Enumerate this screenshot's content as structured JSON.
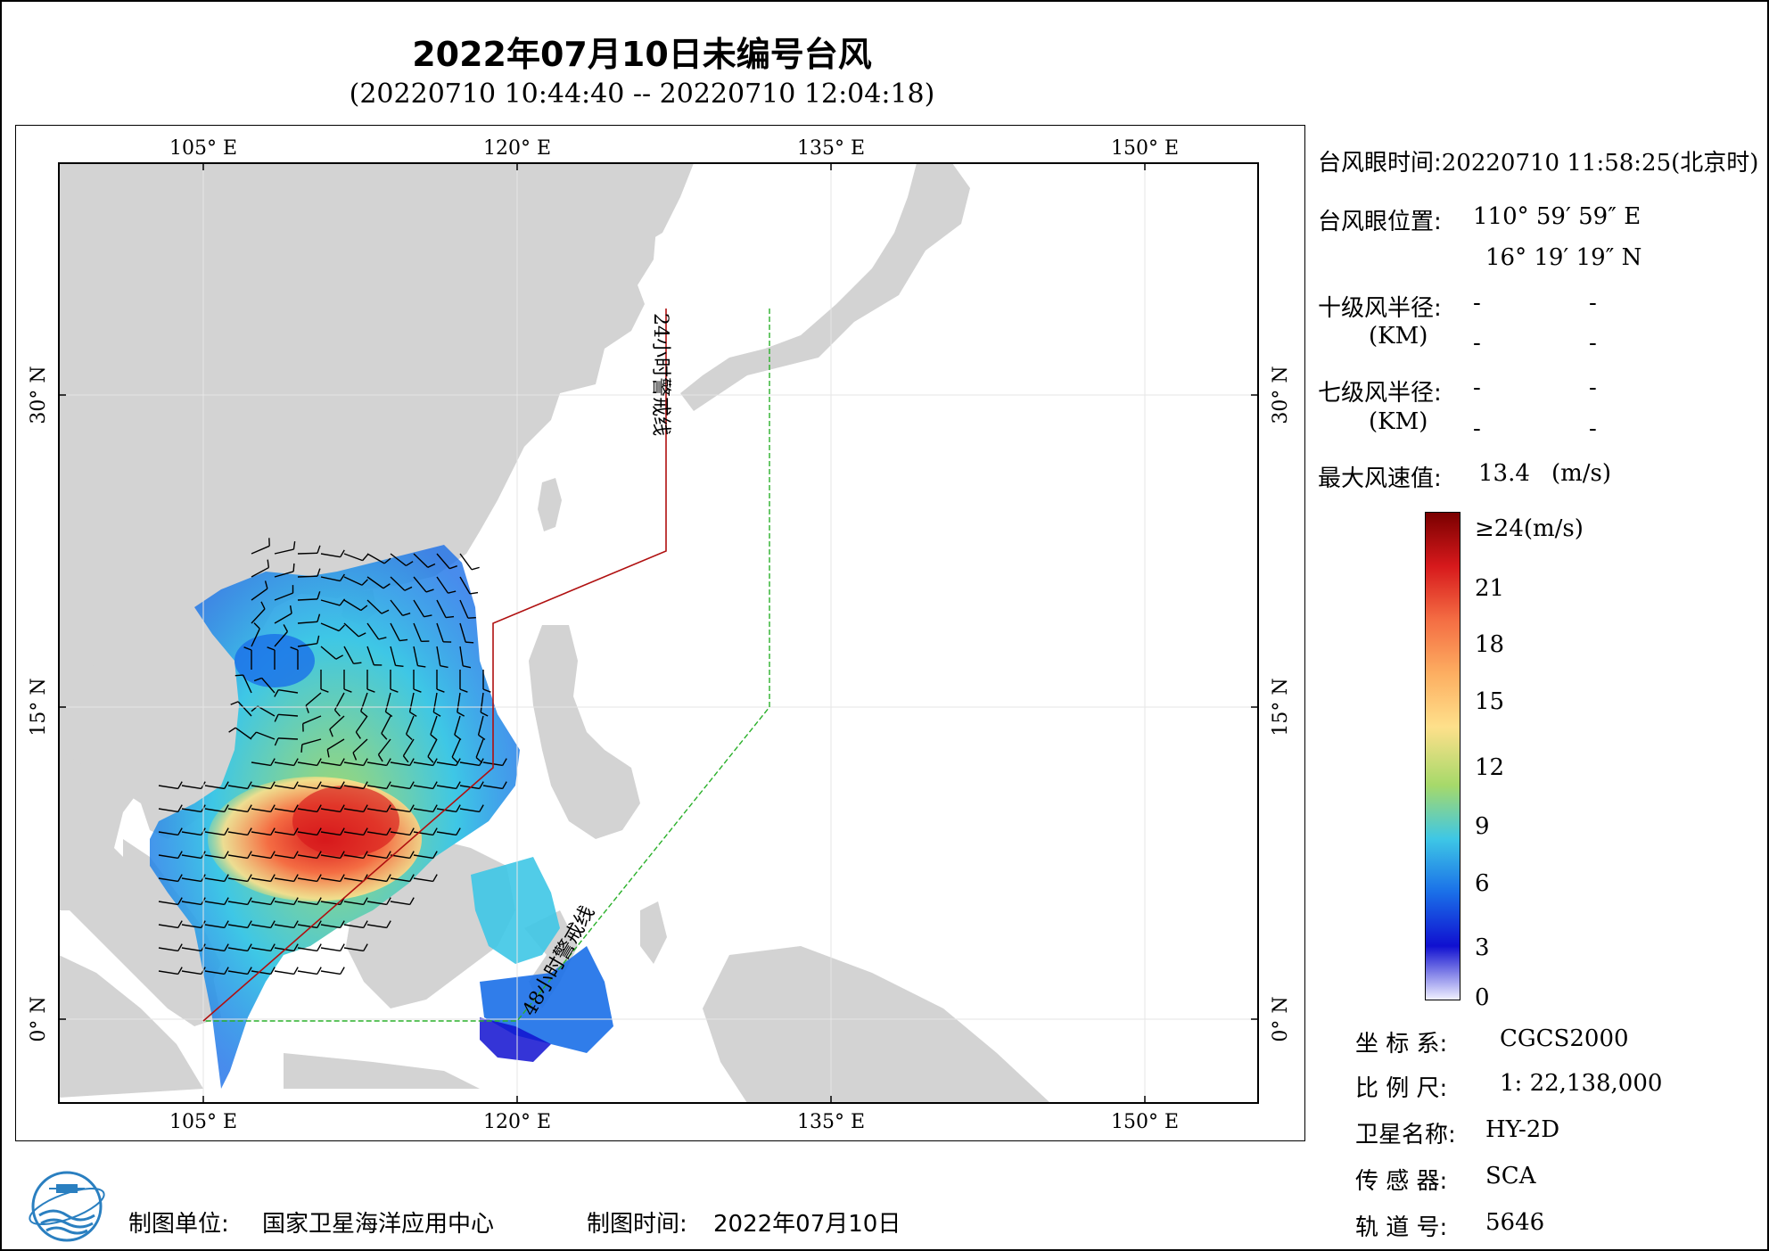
{
  "title": "2022年07月10日未编号台风",
  "subtitle": "(20220710 10:44:40 -- 20220710 12:04:18)",
  "axes": {
    "lon_labels": [
      "105° E",
      "120° E",
      "135° E",
      "150° E"
    ],
    "lat_labels": [
      "30° N",
      "15° N",
      "0° N"
    ]
  },
  "map_labels": {
    "line24": "24小时警戒线",
    "line48": "48小时警戒线"
  },
  "info": {
    "eye_time_label": "台风眼时间:",
    "eye_time_value": "20220710 11:58:25(北京时)",
    "eye_pos_label": "台风眼位置:",
    "eye_lon": "110° 59′ 59″ E",
    "eye_lat": "16° 19′ 19″ N",
    "r10_label": "十级风半径:",
    "r7_label": "七级风半径:",
    "km_label": "(KM)",
    "dash": "-",
    "max_wind_label": "最大风速值:",
    "max_wind_value": "13.4",
    "max_wind_unit": "(m/s)"
  },
  "colorbar": {
    "labels": [
      "≥24(m/s)",
      "21",
      "18",
      "15",
      "12",
      "9",
      "6",
      "3",
      "0"
    ],
    "colors": [
      "#7a0000",
      "#d7191c",
      "#f46d43",
      "#fdae61",
      "#fee08b",
      "#a6d96a",
      "#3ec7e6",
      "#1a6fe8",
      "#1010d0",
      "#f0f0ff"
    ]
  },
  "meta": {
    "crs_label": "坐 标 系:",
    "crs_value": "CGCS2000",
    "scale_label": "比 例 尺:",
    "scale_value": "1: 22,138,000",
    "sat_label": "卫星名称:",
    "sat_value": "HY-2D",
    "sensor_label": "传 感 器:",
    "sensor_value": "SCA",
    "orbit_label": "轨 道 号:",
    "orbit_value": "5646"
  },
  "footer": {
    "unit_label": "制图单位:",
    "unit_value": "国家卫星海洋应用中心",
    "time_label": "制图时间:",
    "time_value": "2022年07月10日"
  }
}
